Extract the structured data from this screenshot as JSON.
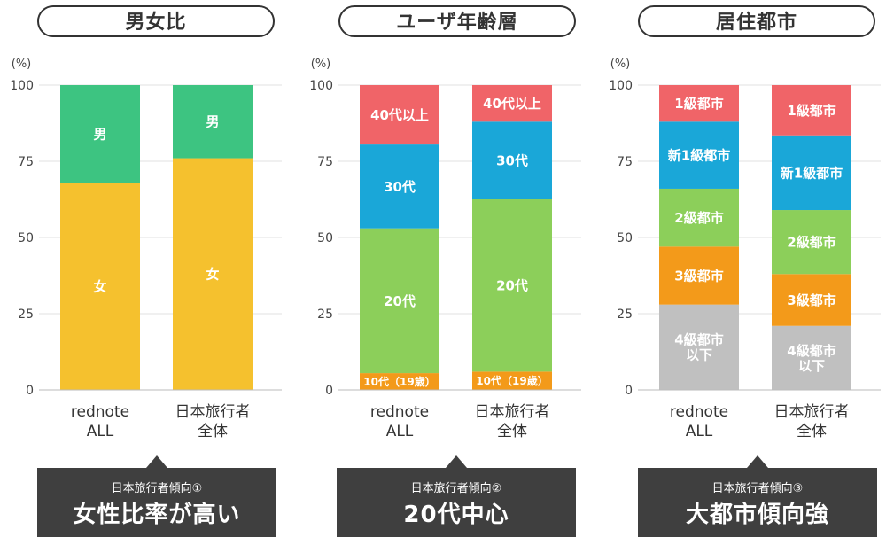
{
  "panels": [
    {
      "title": "男女比",
      "bubble": {
        "sub": "日本旅行者傾向①",
        "main": "女性比率が高い"
      }
    },
    {
      "title": "ユーザ年齢層",
      "bubble": {
        "sub": "日本旅行者傾向②",
        "main": "20代中心"
      }
    },
    {
      "title": "居住都市",
      "bubble": {
        "sub": "日本旅行者傾向③",
        "main": "大都市傾向強"
      }
    }
  ],
  "chart_data": [
    {
      "type": "stacked-bar",
      "title": "男女比",
      "ylabel": "(%)",
      "ylim": [
        0,
        100
      ],
      "yticks": [
        0,
        25,
        50,
        75,
        100
      ],
      "categories": [
        [
          "rednote",
          "ALL"
        ],
        [
          "日本旅行者",
          "全体"
        ]
      ],
      "series": [
        {
          "name": "女",
          "color": "#f5c12e",
          "values": [
            68,
            76
          ]
        },
        {
          "name": "男",
          "color": "#3dc481",
          "values": [
            32,
            24
          ]
        }
      ]
    },
    {
      "type": "stacked-bar",
      "title": "ユーザ年齢層",
      "ylabel": "(%)",
      "ylim": [
        0,
        100
      ],
      "yticks": [
        0,
        25,
        50,
        75,
        100
      ],
      "categories": [
        [
          "rednote",
          "ALL"
        ],
        [
          "日本旅行者",
          "全体"
        ]
      ],
      "series": [
        {
          "name": "10代（19歳）",
          "color": "#f39a1a",
          "values": [
            5.5,
            6
          ]
        },
        {
          "name": "20代",
          "color": "#8ccf5a",
          "values": [
            47.5,
            56.5
          ]
        },
        {
          "name": "30代",
          "color": "#1aa7d8",
          "values": [
            27.5,
            25.5
          ]
        },
        {
          "name": "40代以上",
          "color": "#f06468",
          "values": [
            19.5,
            12
          ]
        }
      ]
    },
    {
      "type": "stacked-bar",
      "title": "居住都市",
      "ylabel": "(%)",
      "ylim": [
        0,
        100
      ],
      "yticks": [
        0,
        25,
        50,
        75,
        100
      ],
      "categories": [
        [
          "rednote",
          "ALL"
        ],
        [
          "日本旅行者",
          "全体"
        ]
      ],
      "series": [
        {
          "name": "4級都市\n以下",
          "color": "#c0c0c0",
          "values": [
            28,
            21
          ]
        },
        {
          "name": "3級都市",
          "color": "#f39a1a",
          "values": [
            19,
            17
          ]
        },
        {
          "name": "2級都市",
          "color": "#8ccf5a",
          "values": [
            19,
            21
          ]
        },
        {
          "name": "新1級都市",
          "color": "#1aa7d8",
          "values": [
            22,
            24.5
          ]
        },
        {
          "name": "1級都市",
          "color": "#f06468",
          "values": [
            12,
            16.5
          ]
        }
      ]
    }
  ]
}
